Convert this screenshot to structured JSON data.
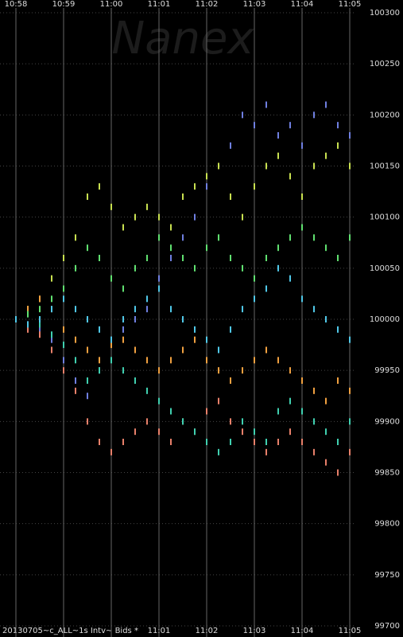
{
  "chart_data": {
    "type": "scatter",
    "watermark": "Nanex",
    "caption": "20130705~c_ALL~1s Intv~ Bids *",
    "x": [
      0,
      0.25,
      0.5,
      0.75,
      1,
      1.25,
      1.5,
      1.75,
      2,
      2.25,
      2.5,
      2.75,
      3,
      3.25,
      3.5,
      3.75,
      4,
      4.25,
      4.5,
      4.75,
      5,
      5.25,
      5.5,
      5.75,
      6,
      6.25,
      6.5,
      6.75,
      7
    ],
    "xlim": [
      0,
      7
    ],
    "xticks": [
      {
        "value": 0,
        "label": "10:58"
      },
      {
        "value": 1,
        "label": "10:59"
      },
      {
        "value": 2,
        "label": "11:00"
      },
      {
        "value": 3,
        "label": "11:01"
      },
      {
        "value": 4,
        "label": "11:02"
      },
      {
        "value": 5,
        "label": "11:03"
      },
      {
        "value": 6,
        "label": "11:04"
      },
      {
        "value": 7,
        "label": "11:05"
      }
    ],
    "ylim": [
      99700,
      100300
    ],
    "yticks": [
      99700,
      99750,
      99800,
      99850,
      99900,
      99950,
      100000,
      100050,
      100100,
      100150,
      100200,
      100250,
      100300
    ],
    "grid": true,
    "series": [
      {
        "color": "#6f7fe0",
        "values": [
          100000,
          99995,
          99990,
          99980,
          99960,
          99940,
          99925,
          99950,
          99980,
          99990,
          100000,
          100010,
          100040,
          100060,
          100080,
          100100,
          100130,
          100150,
          100170,
          100200,
          100190,
          100210,
          100180,
          100190,
          100170,
          100200,
          100210,
          100190,
          100180
        ]
      },
      {
        "color": "#c8e050",
        "values": [
          100000,
          100010,
          100020,
          100040,
          100060,
          100080,
          100120,
          100130,
          100110,
          100090,
          100100,
          100110,
          100100,
          100090,
          100120,
          100130,
          100140,
          100150,
          100120,
          100100,
          100130,
          100150,
          100160,
          100140,
          100120,
          100150,
          100160,
          100170,
          100150
        ]
      },
      {
        "color": "#e8806a",
        "values": [
          100000,
          99990,
          99985,
          99970,
          99950,
          99930,
          99900,
          99880,
          99870,
          99880,
          99890,
          99900,
          99890,
          99880,
          99900,
          99890,
          99910,
          99920,
          99900,
          99890,
          99880,
          99870,
          99880,
          99890,
          99880,
          99870,
          99860,
          99850,
          99870
        ]
      },
      {
        "color": "#40d0b0",
        "values": [
          100000,
          100005,
          99995,
          99985,
          99975,
          99960,
          99940,
          99950,
          99960,
          99950,
          99940,
          99930,
          99920,
          99910,
          99900,
          99890,
          99880,
          99870,
          99880,
          99900,
          99890,
          99880,
          99910,
          99920,
          99910,
          99900,
          99890,
          99880,
          99900
        ]
      },
      {
        "color": "#f0a040",
        "values": [
          100000,
          100010,
          100020,
          100010,
          99990,
          99980,
          99970,
          99960,
          99975,
          99980,
          99970,
          99960,
          99950,
          99960,
          99970,
          99980,
          99960,
          99950,
          99940,
          99950,
          99960,
          99970,
          99960,
          99950,
          99940,
          99930,
          99920,
          99940,
          99930
        ]
      },
      {
        "color": "#60e070",
        "values": [
          100000,
          100005,
          100010,
          100020,
          100030,
          100050,
          100070,
          100060,
          100040,
          100030,
          100050,
          100060,
          100080,
          100070,
          100060,
          100050,
          100070,
          100080,
          100060,
          100050,
          100040,
          100060,
          100070,
          100080,
          100090,
          100080,
          100070,
          100060,
          100080
        ]
      },
      {
        "color": "#50c8e8",
        "values": [
          100000,
          99995,
          100000,
          100010,
          100020,
          100010,
          100000,
          99990,
          99980,
          100000,
          100010,
          100020,
          100030,
          100010,
          100000,
          99990,
          99980,
          99970,
          99990,
          100010,
          100020,
          100030,
          100050,
          100040,
          100020,
          100010,
          100000,
          99990,
          99980
        ]
      }
    ]
  }
}
